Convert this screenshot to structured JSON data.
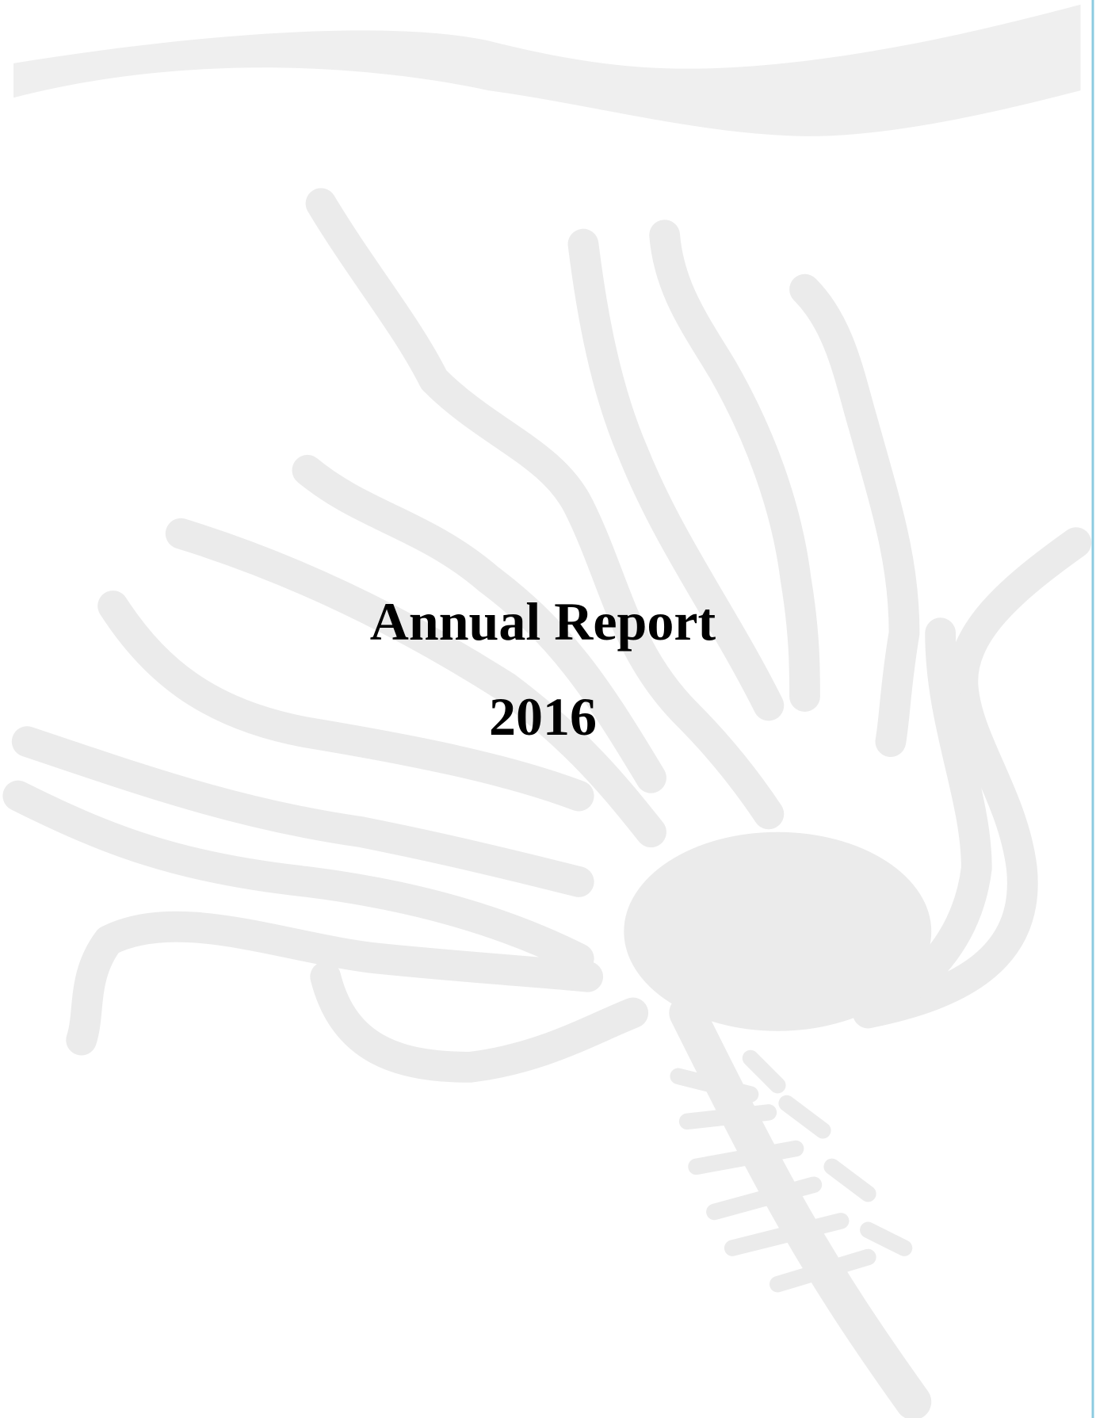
{
  "document": {
    "title": "Annual Report",
    "year": "2016"
  }
}
